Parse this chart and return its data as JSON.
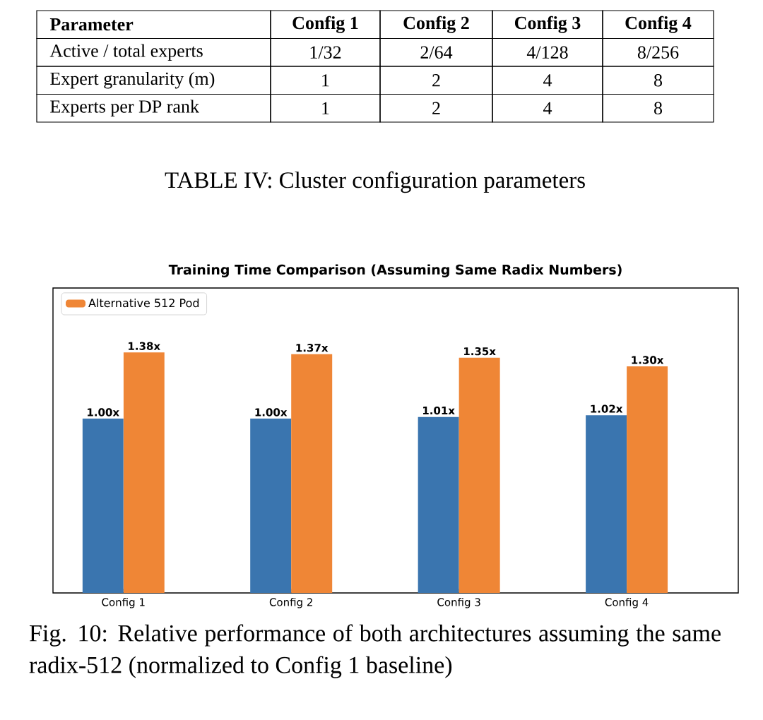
{
  "chart_data": [
    {
      "type": "other",
      "cell_labels": [
        [
          "Parameter",
          "Config 1",
          "Config 2",
          "Config 3",
          "Config 4"
        ],
        [
          "Active / total experts",
          "1/32",
          "2/64",
          "4/128",
          "8/256"
        ],
        [
          "Expert granularity (m)",
          "1",
          "2",
          "4",
          "8"
        ],
        [
          "Experts per DP rank",
          "1",
          "2",
          "4",
          "8"
        ]
      ],
      "annotations": [
        "TABLE IV: Cluster configuration parameters"
      ]
    },
    {
      "type": "bar",
      "title": "Training Time Comparison (Assuming Same Radix Numbers)",
      "categories": [
        "Config 1",
        "Config 2",
        "Config 3",
        "Config 4"
      ],
      "series": [
        {
          "color": "#3a75af",
          "values": [
            1.0,
            1.0,
            1.01,
            1.02
          ],
          "value_labels": [
            "1.00x",
            "1.00x",
            "1.01x",
            "1.02x"
          ]
        },
        {
          "name": "Alternative 512 Pod",
          "color": "#ef8636",
          "values": [
            1.38,
            1.37,
            1.35,
            1.3
          ],
          "value_labels": [
            "1.38x",
            "1.37x",
            "1.35x",
            "1.30x"
          ]
        }
      ],
      "legend": "top left",
      "tick_labels": "x",
      "grid": false,
      "annotations": [
        "Fig. 10: Relative performance of both architectures assuming the same radix-512 (normalized to Config 1 baseline)"
      ]
    }
  ]
}
